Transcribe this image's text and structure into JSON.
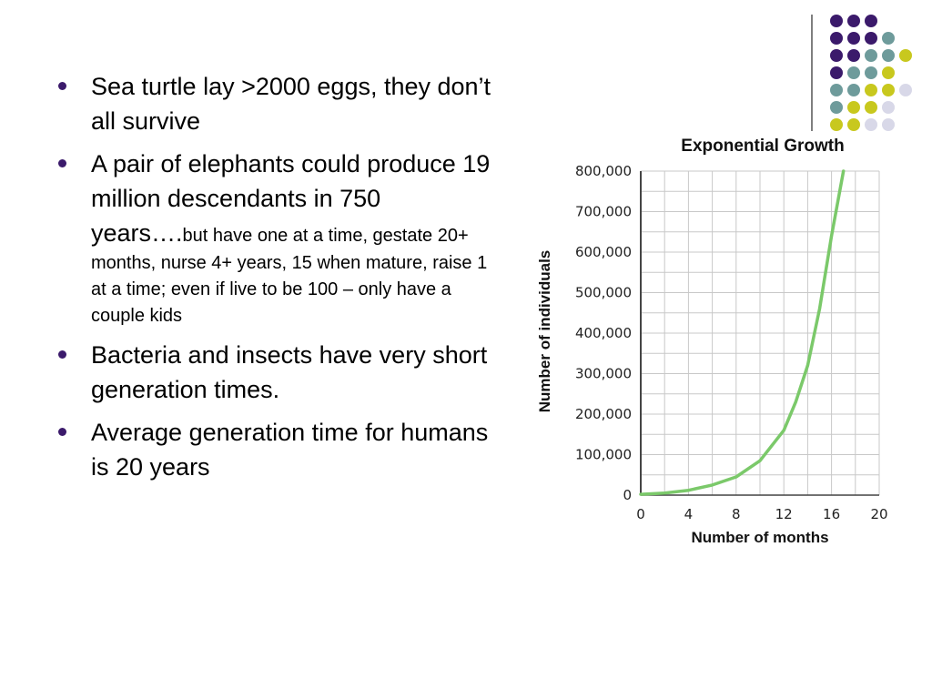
{
  "slide": {
    "bullets": [
      {
        "text": "Sea turtle lay >2000 eggs, they don’t all survive"
      },
      {
        "text": "A pair of elephants could produce 19 million descendants in 750 years….",
        "small": "but have one at a time, gestate 20+ months, nurse 4+ years, 15 when mature, raise 1 at a time; even if  live to be 100 – only have a couple kids"
      },
      {
        "text": "Bacteria and insects have very short generation times."
      },
      {
        "text": "Average generation time for humans is 20 years"
      }
    ]
  },
  "colors": {
    "bullet": "#3b1a6b",
    "dot_purple": "#3b1a6b",
    "dot_teal": "#6e9b9b",
    "dot_yellow": "#c8c81e",
    "dot_lavender": "#d8d8e8",
    "curve": "#7bc96a",
    "grid": "#c8c8c8"
  },
  "chart_data": {
    "type": "line",
    "title": "Exponential Growth",
    "xlabel": "Number of months",
    "ylabel": "Number of individuals",
    "x_ticks": [
      "0",
      "4",
      "8",
      "12",
      "16",
      "20"
    ],
    "y_ticks": [
      "0",
      "100,000",
      "200,000",
      "300,000",
      "400,000",
      "500,000",
      "600,000",
      "700,000",
      "800,000"
    ],
    "xlim": [
      0,
      20
    ],
    "ylim": [
      0,
      800000
    ],
    "grid": true,
    "series": [
      {
        "x": [
          0,
          2,
          4,
          6,
          8,
          10,
          12,
          13,
          14,
          15,
          16,
          17
        ],
        "values": [
          2000,
          5000,
          12000,
          25000,
          45000,
          85000,
          160000,
          230000,
          320000,
          460000,
          640000,
          800000
        ]
      }
    ]
  }
}
